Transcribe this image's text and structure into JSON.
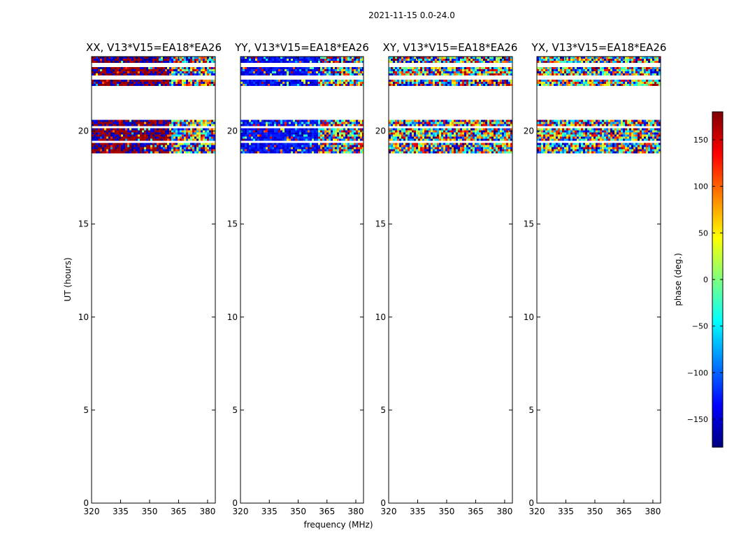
{
  "chart_data": {
    "type": "heatmap",
    "suptitle": "2021-11-15 0.0-24.0",
    "xlabel": "frequency (MHz)",
    "ylabel": "UT (hours)",
    "xlim": [
      320,
      384
    ],
    "ylim": [
      0,
      24
    ],
    "xticks": [
      320,
      335,
      350,
      365,
      380
    ],
    "yticks": [
      0,
      5,
      10,
      15,
      20
    ],
    "data_time_ranges_hours": [
      [
        18.8,
        20.6
      ],
      [
        22.5,
        24.0
      ]
    ],
    "panels": [
      {
        "title": "XX, V13*V15=EA18*EA26",
        "pattern": "xx"
      },
      {
        "title": "YY, V13*V15=EA18*EA26",
        "pattern": "yy"
      },
      {
        "title": "XY, V13*V15=EA18*EA26",
        "pattern": "noise"
      },
      {
        "title": "YX, V13*V15=EA18*EA26",
        "pattern": "noise"
      }
    ],
    "colorbar": {
      "label": "phase (deg.)",
      "range": [
        -180,
        180
      ],
      "ticks": [
        150,
        100,
        50,
        0,
        -50,
        -100,
        -150
      ],
      "tick_labels": [
        "150",
        "100",
        "50",
        "0",
        "−50",
        "−100",
        "−150"
      ],
      "colormap": [
        "#00007f",
        "#0000ff",
        "#007fff",
        "#00ffff",
        "#7fff7f",
        "#ffff00",
        "#ff7f00",
        "#ff0000",
        "#7f0000"
      ]
    }
  }
}
